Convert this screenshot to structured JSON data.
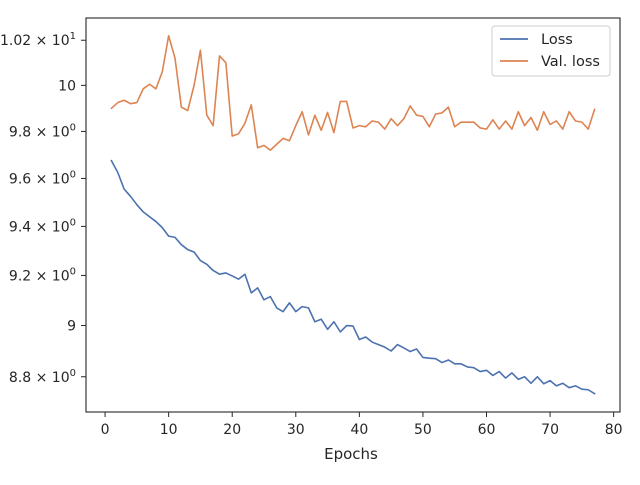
{
  "chart_data": {
    "type": "line",
    "title": "",
    "xlabel": "Epochs",
    "ylabel": "",
    "xlim": [
      -3,
      81
    ],
    "ylim": [
      8.665,
      10.3
    ],
    "yscale": "log",
    "grid": false,
    "legend_position": "top-right",
    "x_ticks": [
      0,
      10,
      20,
      30,
      40,
      50,
      60,
      70,
      80
    ],
    "x_tick_labels": [
      "0",
      "10",
      "20",
      "30",
      "40",
      "50",
      "60",
      "70",
      "80"
    ],
    "y_ticks": [
      {
        "value": 8.8,
        "mantissa": "8.8",
        "exp": "0",
        "plain": ""
      },
      {
        "value": 9.0,
        "mantissa": "",
        "exp": "",
        "plain": "9"
      },
      {
        "value": 9.2,
        "mantissa": "9.2",
        "exp": "0",
        "plain": ""
      },
      {
        "value": 9.4,
        "mantissa": "9.4",
        "exp": "0",
        "plain": ""
      },
      {
        "value": 9.6,
        "mantissa": "9.6",
        "exp": "0",
        "plain": ""
      },
      {
        "value": 9.8,
        "mantissa": "9.8",
        "exp": "0",
        "plain": ""
      },
      {
        "value": 10.0,
        "mantissa": "",
        "exp": "",
        "plain": "10"
      },
      {
        "value": 10.2,
        "mantissa": "1.02",
        "exp": "1",
        "plain": ""
      }
    ],
    "times_symbol": "×",
    "base_label": "10",
    "x": [
      1,
      2,
      3,
      4,
      5,
      6,
      7,
      8,
      9,
      10,
      11,
      12,
      13,
      14,
      15,
      16,
      17,
      18,
      19,
      20,
      21,
      22,
      23,
      24,
      25,
      26,
      27,
      28,
      29,
      30,
      31,
      32,
      33,
      34,
      35,
      36,
      37,
      38,
      39,
      40,
      41,
      42,
      43,
      44,
      45,
      46,
      47,
      48,
      49,
      50,
      51,
      52,
      53,
      54,
      55,
      56,
      57,
      58,
      59,
      60,
      61,
      62,
      63,
      64,
      65,
      66,
      67,
      68,
      69,
      70,
      71,
      72,
      73,
      74,
      75,
      76,
      77
    ],
    "series": [
      {
        "name": "Loss",
        "color": "#4c72b0",
        "values": [
          9.675,
          9.625,
          9.555,
          9.525,
          9.49,
          9.46,
          9.44,
          9.42,
          9.395,
          9.36,
          9.355,
          9.325,
          9.305,
          9.295,
          9.26,
          9.245,
          9.22,
          9.205,
          9.21,
          9.198,
          9.185,
          9.205,
          9.13,
          9.15,
          9.102,
          9.115,
          9.07,
          9.055,
          9.09,
          9.055,
          9.075,
          9.07,
          9.015,
          9.025,
          8.985,
          9.015,
          8.975,
          9.0,
          8.998,
          8.945,
          8.955,
          8.935,
          8.925,
          8.915,
          8.9,
          8.925,
          8.912,
          8.898,
          8.908,
          8.875,
          8.872,
          8.87,
          8.855,
          8.865,
          8.85,
          8.85,
          8.838,
          8.835,
          8.82,
          8.825,
          8.805,
          8.82,
          8.795,
          8.815,
          8.79,
          8.8,
          8.775,
          8.8,
          8.773,
          8.785,
          8.765,
          8.775,
          8.758,
          8.765,
          8.752,
          8.75,
          8.735
        ]
      },
      {
        "name": "Val. loss",
        "color": "#dd8452",
        "values": [
          9.9,
          9.925,
          9.935,
          9.92,
          9.925,
          9.985,
          10.005,
          9.985,
          10.06,
          10.22,
          10.12,
          9.905,
          9.89,
          10.0,
          10.155,
          9.87,
          9.825,
          10.13,
          10.1,
          9.78,
          9.79,
          9.835,
          9.915,
          9.73,
          9.74,
          9.72,
          9.745,
          9.77,
          9.76,
          9.825,
          9.885,
          9.785,
          9.87,
          9.805,
          9.882,
          9.795,
          9.93,
          9.93,
          9.815,
          9.825,
          9.82,
          9.845,
          9.84,
          9.81,
          9.855,
          9.825,
          9.855,
          9.91,
          9.87,
          9.865,
          9.82,
          9.875,
          9.88,
          9.905,
          9.82,
          9.84,
          9.84,
          9.84,
          9.815,
          9.81,
          9.85,
          9.81,
          9.845,
          9.81,
          9.885,
          9.825,
          9.86,
          9.805,
          9.885,
          9.83,
          9.845,
          9.81,
          9.885,
          9.845,
          9.84,
          9.81,
          9.895
        ]
      }
    ]
  }
}
